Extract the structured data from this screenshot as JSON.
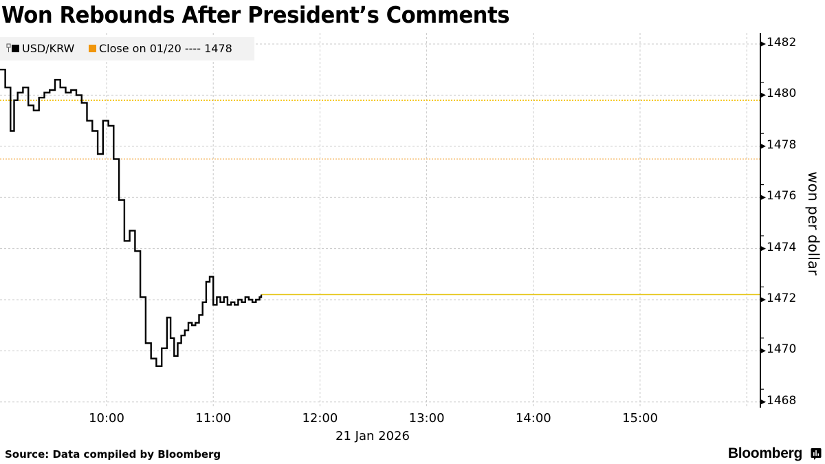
{
  "title": "Won Rebounds After President’s Comments",
  "legend": {
    "items": [
      {
        "label": "USD/KRW",
        "color": "#000000",
        "icon": "line-series-icon"
      },
      {
        "label": "Close on 01/20 ---- 1478",
        "color": "#f0960c"
      }
    ]
  },
  "axis": {
    "y_label": "won per dollar",
    "y_ticks": [
      "1482",
      "1480",
      "1478",
      "1476",
      "1474",
      "1472",
      "1470",
      "1468"
    ],
    "x_ticks": [
      "10:00",
      "11:00",
      "12:00",
      "13:00",
      "14:00",
      "15:00"
    ],
    "x_date": "21 Jan 2026"
  },
  "footer": {
    "source": "Source: Data compiled by Bloomberg",
    "brand": "Bloomberg"
  },
  "colors": {
    "series": "#000000",
    "close_line": "#f0960c",
    "reference_yellow": "#f5c518",
    "grid": "#c8c8c8",
    "legend_bg": "#f2f2f2"
  },
  "chart_data": {
    "type": "line",
    "title": "Won Rebounds After President’s Comments",
    "xlabel": "21 Jan 2026",
    "ylabel": "won per dollar",
    "ylim": [
      1467.7,
      1482.3
    ],
    "xlim": [
      "09:00",
      "16:05"
    ],
    "grid": true,
    "legend_position": "top-left",
    "x_ticks": [
      "10:00",
      "11:00",
      "12:00",
      "13:00",
      "14:00",
      "15:00"
    ],
    "y_ticks": [
      1468,
      1470,
      1472,
      1474,
      1476,
      1478,
      1480,
      1482
    ],
    "series": [
      {
        "name": "USD/KRW",
        "x": [
          "09:00",
          "09:03",
          "09:06",
          "09:08",
          "09:10",
          "09:13",
          "09:16",
          "09:19",
          "09:22",
          "09:25",
          "09:28",
          "09:31",
          "09:34",
          "09:37",
          "09:40",
          "09:43",
          "09:46",
          "09:49",
          "09:52",
          "09:55",
          "09:58",
          "10:01",
          "10:04",
          "10:07",
          "10:10",
          "10:13",
          "10:16",
          "10:19",
          "10:22",
          "10:25",
          "10:28",
          "10:31",
          "10:34",
          "10:36",
          "10:38",
          "10:40",
          "10:42",
          "10:44",
          "10:46",
          "10:48",
          "10:50",
          "10:52",
          "10:54",
          "10:56",
          "10:58",
          "11:00",
          "11:02",
          "11:04",
          "11:06",
          "11:08",
          "11:10",
          "11:12",
          "11:14",
          "11:16",
          "11:18",
          "11:20",
          "11:22",
          "11:24",
          "11:26",
          "11:27"
        ],
        "values": [
          1481.0,
          1480.3,
          1478.6,
          1479.8,
          1480.1,
          1480.3,
          1479.6,
          1479.4,
          1479.9,
          1480.1,
          1480.2,
          1480.6,
          1480.3,
          1480.1,
          1480.2,
          1480.0,
          1479.7,
          1479.0,
          1478.6,
          1477.7,
          1479.0,
          1478.8,
          1477.5,
          1475.9,
          1474.3,
          1474.7,
          1473.9,
          1472.1,
          1470.3,
          1469.7,
          1469.4,
          1470.1,
          1471.3,
          1470.5,
          1469.8,
          1470.3,
          1470.6,
          1470.8,
          1471.1,
          1471.0,
          1471.1,
          1471.4,
          1471.9,
          1472.7,
          1472.9,
          1471.8,
          1472.1,
          1471.9,
          1472.1,
          1471.8,
          1471.9,
          1471.8,
          1472.0,
          1471.9,
          1472.1,
          1472.0,
          1471.9,
          1472.0,
          1472.1,
          1472.2
        ]
      },
      {
        "name": "Close on 01/20",
        "value": 1477.5,
        "style": "dotted"
      },
      {
        "name": "Reference level (yellow dotted)",
        "value": 1479.8,
        "style": "dotted"
      },
      {
        "name": "Last price extension",
        "value": 1472.2,
        "style": "solid",
        "from": "11:27"
      }
    ]
  }
}
